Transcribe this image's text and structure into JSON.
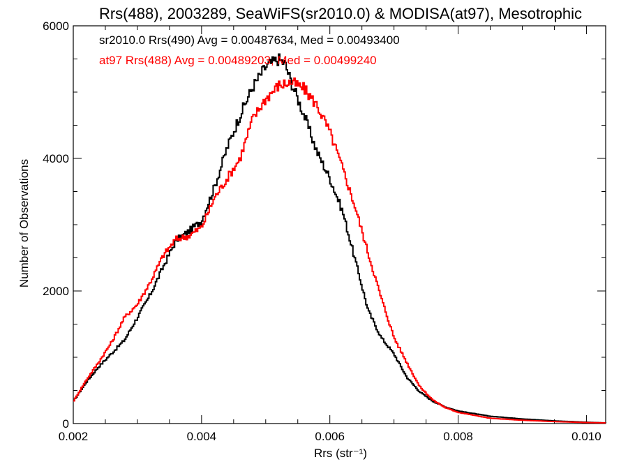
{
  "chart_data": {
    "type": "line",
    "title": "Rrs(488), 2003289, SeaWiFS(sr2010.0) & MODISA(at97), Mesotrophic",
    "xlabel": "Rrs (str⁻¹)",
    "ylabel": "Number of Observations",
    "xlim": [
      0.002,
      0.0103
    ],
    "ylim": [
      0,
      6000
    ],
    "x_ticks": [
      0.002,
      0.004,
      0.006,
      0.008,
      0.01
    ],
    "x_tick_labels": [
      "0.002",
      "0.004",
      "0.006",
      "0.008",
      "0.010"
    ],
    "y_ticks": [
      0,
      2000,
      4000,
      6000
    ],
    "y_tick_labels": [
      "0",
      "2000",
      "4000",
      "6000"
    ],
    "grid": false,
    "legend_position": "top-left",
    "series": [
      {
        "name": "sr2010.0 Rrs(490) Avg = 0.00487634, Med = 0.00493400",
        "color": "#000000",
        "x": [
          0.002,
          0.0022,
          0.0024,
          0.0026,
          0.0028,
          0.003,
          0.0032,
          0.0034,
          0.0036,
          0.0038,
          0.004,
          0.0042,
          0.0044,
          0.0046,
          0.0048,
          0.005,
          0.0052,
          0.0053,
          0.0054,
          0.0055,
          0.0056,
          0.0058,
          0.006,
          0.0062,
          0.0064,
          0.0066,
          0.0068,
          0.007,
          0.0072,
          0.0074,
          0.0076,
          0.0078,
          0.008,
          0.0085,
          0.009,
          0.0095,
          0.01,
          0.0103
        ],
        "y": [
          330,
          620,
          860,
          1060,
          1260,
          1600,
          1940,
          2360,
          2760,
          2900,
          3060,
          3560,
          4160,
          4650,
          5080,
          5380,
          5500,
          5430,
          5150,
          4900,
          4650,
          4100,
          3700,
          3200,
          2450,
          1700,
          1300,
          1050,
          700,
          480,
          340,
          250,
          190,
          110,
          70,
          40,
          20,
          10
        ]
      },
      {
        "name": "at97 Rrs(488) Avg = 0.00489203, Med = 0.00499240",
        "color": "#ff0000",
        "x": [
          0.002,
          0.0022,
          0.0024,
          0.0026,
          0.0028,
          0.003,
          0.0032,
          0.0034,
          0.0036,
          0.0038,
          0.004,
          0.0042,
          0.0044,
          0.0046,
          0.0048,
          0.005,
          0.0052,
          0.0054,
          0.0055,
          0.0056,
          0.0058,
          0.006,
          0.0062,
          0.0064,
          0.0066,
          0.0068,
          0.007,
          0.0072,
          0.0074,
          0.0076,
          0.0078,
          0.008,
          0.0085,
          0.009,
          0.0095,
          0.01,
          0.0103
        ],
        "y": [
          330,
          650,
          930,
          1230,
          1600,
          1800,
          2130,
          2530,
          2780,
          2830,
          2960,
          3400,
          3700,
          4000,
          4600,
          4900,
          5100,
          5150,
          5100,
          5050,
          4800,
          4400,
          3850,
          3250,
          2560,
          1900,
          1300,
          920,
          560,
          360,
          240,
          170,
          80,
          50,
          30,
          15,
          10
        ]
      }
    ]
  }
}
